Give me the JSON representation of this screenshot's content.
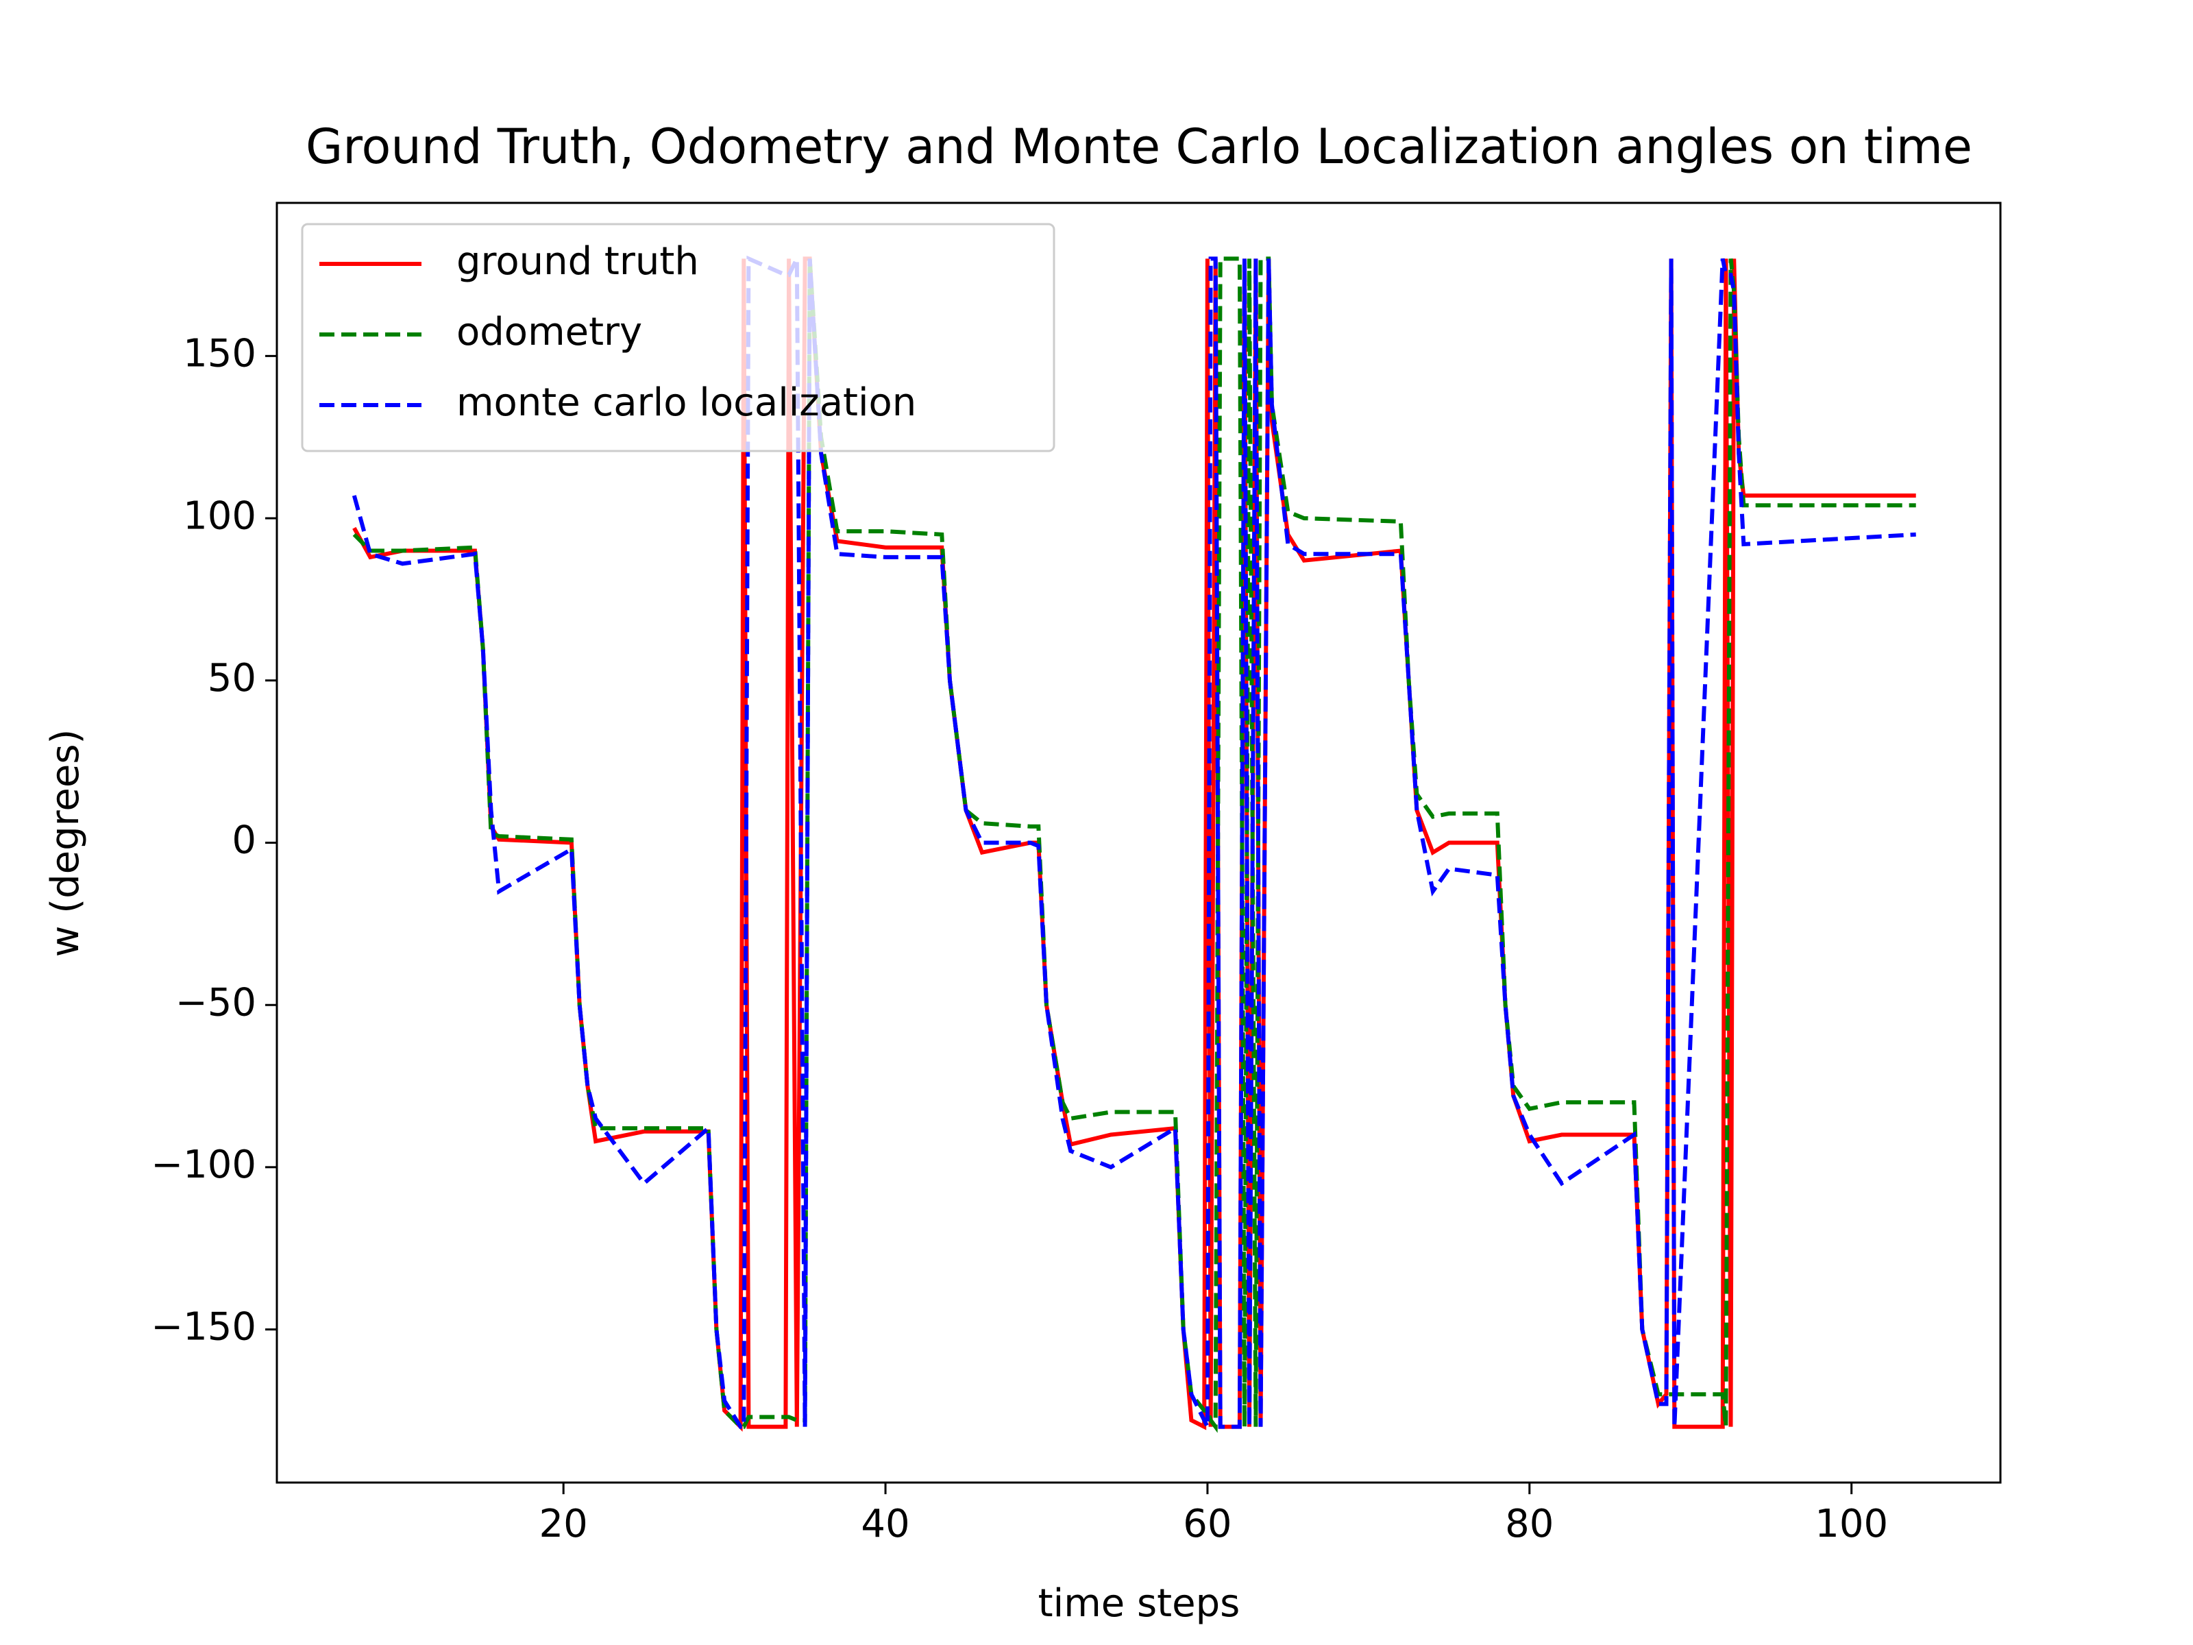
{
  "chart_data": {
    "type": "line",
    "title": "Ground Truth, Odometry and Monte Carlo Localization angles on time",
    "x_label": "time steps",
    "y_label": "w (degrees)",
    "x": [
      7,
      8,
      10,
      14.5,
      15,
      15.5,
      16,
      20.5,
      21,
      21.5,
      22,
      25,
      29,
      29.5,
      30,
      31,
      31.2,
      31.5,
      33.8,
      34,
      34.5,
      35,
      35.3,
      36,
      37,
      40,
      43.5,
      44,
      45,
      46,
      49,
      49.5,
      50,
      51,
      51.5,
      54,
      58,
      58.5,
      59,
      59.8,
      60,
      60.2,
      60.5,
      60.8,
      62,
      62.3,
      62.6,
      63,
      63.3,
      63.8,
      64,
      65,
      66,
      72,
      72.5,
      73,
      74,
      75,
      78,
      78.5,
      79,
      80,
      82,
      86.5,
      87,
      88,
      88.5,
      88.8,
      89,
      92,
      92.2,
      92.5,
      92.7,
      93,
      93.3,
      104
    ],
    "series": [
      {
        "name": "ground truth",
        "color": "#ff0000",
        "linestyle": "solid",
        "values": [
          97,
          88,
          90,
          90,
          60,
          5,
          1,
          0,
          -50,
          -75,
          -92,
          -89,
          -89,
          -150,
          -175,
          -180,
          180,
          -180,
          -180,
          180,
          -180,
          180,
          180,
          120,
          93,
          91,
          91,
          50,
          10,
          -3,
          0,
          0,
          -50,
          -80,
          -93,
          -90,
          -88,
          -150,
          -178,
          -180,
          180,
          -180,
          180,
          -180,
          -180,
          180,
          -180,
          180,
          -180,
          180,
          130,
          95,
          87,
          90,
          50,
          10,
          -3,
          0,
          0,
          -50,
          -78,
          -92,
          -90,
          -90,
          -150,
          -173,
          -170,
          180,
          -180,
          -180,
          180,
          -180,
          180,
          120,
          107,
          107
        ]
      },
      {
        "name": "odometry",
        "color": "#008000",
        "linestyle": "dashed",
        "values": [
          95,
          90,
          90,
          91,
          60,
          3,
          2,
          1,
          -50,
          -75,
          -88,
          -88,
          -88,
          -150,
          -175,
          -180,
          -180,
          -177,
          -177,
          -177,
          -178,
          -178,
          180,
          125,
          96,
          96,
          95,
          50,
          10,
          6,
          5,
          5,
          -50,
          -80,
          -85,
          -83,
          -83,
          -150,
          -170,
          -175,
          -175,
          -178,
          -180,
          180,
          180,
          -180,
          180,
          -180,
          180,
          180,
          135,
          102,
          100,
          99,
          50,
          15,
          8,
          9,
          9,
          -50,
          -75,
          -82,
          -80,
          -80,
          -150,
          -170,
          -170,
          -170,
          -170,
          -170,
          -180,
          180,
          170,
          125,
          104,
          104
        ]
      },
      {
        "name": "monte carlo localization",
        "color": "#0000ff",
        "linestyle": "dashed",
        "values": [
          107,
          89,
          86,
          89,
          60,
          10,
          -15,
          -2,
          -50,
          -75,
          -85,
          -105,
          -88,
          -150,
          -172,
          -180,
          -180,
          180,
          175,
          175,
          180,
          -180,
          180,
          120,
          89,
          88,
          88,
          50,
          10,
          0,
          0,
          -1,
          -50,
          -85,
          -95,
          -100,
          -88,
          -150,
          -170,
          -178,
          -180,
          180,
          180,
          -180,
          -180,
          180,
          -180,
          180,
          -180,
          180,
          135,
          92,
          89,
          89,
          50,
          10,
          -15,
          -8,
          -10,
          -50,
          -78,
          -90,
          -105,
          -90,
          -150,
          -173,
          -173,
          180,
          -180,
          180,
          175,
          175,
          170,
          120,
          92,
          95
        ]
      }
    ],
    "xlim": [
      2.2,
      109.25
    ],
    "xticks": [
      20,
      40,
      60,
      80,
      100
    ],
    "ylim": [
      -197.2,
      197.2
    ],
    "yticks": [
      {
        "value": -150,
        "label": "−150"
      },
      {
        "value": -100,
        "label": "−100"
      },
      {
        "value": -50,
        "label": "−50"
      },
      0,
      50,
      100,
      150
    ],
    "legend": "upper left",
    "grid": false
  }
}
